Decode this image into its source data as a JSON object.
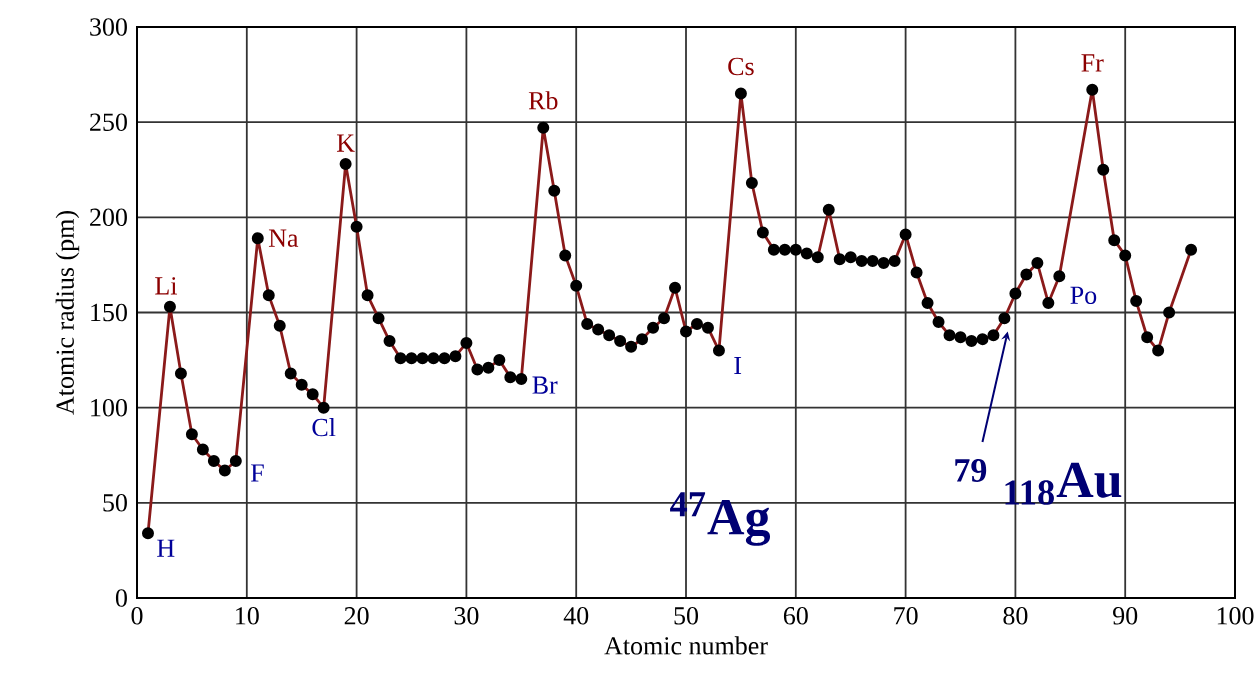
{
  "chart_data": {
    "type": "line",
    "xlabel": "Atomic number",
    "ylabel": "Atomic radius (pm)",
    "xlim": [
      0,
      100
    ],
    "ylim": [
      0,
      300
    ],
    "xticks": [
      0,
      10,
      20,
      30,
      40,
      50,
      60,
      70,
      80,
      90,
      100
    ],
    "yticks": [
      0,
      50,
      100,
      150,
      200,
      250,
      300
    ],
    "grid": true,
    "marker": "circle",
    "line_style": "solid",
    "series": [
      {
        "color": "#8b1a1a",
        "x": [
          1,
          3,
          4,
          5,
          6,
          7,
          8,
          9,
          11,
          12,
          13,
          14,
          15,
          16,
          17,
          19,
          20,
          21,
          22,
          23,
          24,
          25,
          26,
          27,
          28,
          29,
          30,
          31,
          32,
          33,
          34,
          35,
          37,
          38,
          39,
          40,
          41,
          42,
          43,
          44,
          45,
          46,
          47,
          48,
          49,
          50,
          51,
          52,
          53,
          55,
          56,
          57,
          58,
          59,
          60,
          61,
          62,
          63,
          64,
          65,
          66,
          67,
          68,
          69,
          70,
          71,
          72,
          73,
          74,
          75,
          76,
          77,
          78,
          79,
          80,
          81,
          82,
          83,
          84,
          87,
          88,
          89,
          90,
          91,
          92,
          93,
          94,
          96
        ],
        "values": [
          34,
          153,
          118,
          86,
          78,
          72,
          67,
          72,
          189,
          159,
          143,
          118,
          112,
          107,
          100,
          228,
          195,
          159,
          147,
          135,
          126,
          126,
          126,
          126,
          126,
          127,
          134,
          120,
          121,
          125,
          116,
          115,
          247,
          214,
          180,
          164,
          144,
          141,
          138,
          135,
          132,
          136,
          142,
          147,
          163,
          140,
          144,
          142,
          130,
          265,
          218,
          192,
          183,
          183,
          183,
          181,
          179,
          204,
          178,
          179,
          177,
          177,
          176,
          177,
          191,
          171,
          155,
          145,
          138,
          137,
          135,
          136,
          138,
          147,
          160,
          170,
          176,
          155,
          169,
          267,
          225,
          188,
          180,
          156,
          137,
          130,
          150,
          183
        ]
      }
    ],
    "annotations": [
      {
        "text": "H",
        "x": 1,
        "y": 34
      },
      {
        "text": "Li",
        "x": 3,
        "y": 153
      },
      {
        "text": "F",
        "x": 9,
        "y": 72
      },
      {
        "text": "Na",
        "x": 11,
        "y": 189
      },
      {
        "text": "Cl",
        "x": 17,
        "y": 100
      },
      {
        "text": "K",
        "x": 19,
        "y": 228
      },
      {
        "text": "Br",
        "x": 35,
        "y": 115
      },
      {
        "text": "Rb",
        "x": 37,
        "y": 247
      },
      {
        "text": "I",
        "x": 53,
        "y": 130
      },
      {
        "text": "Cs",
        "x": 55,
        "y": 265
      },
      {
        "text": "Po",
        "x": 84,
        "y": 169
      },
      {
        "text": "Fr",
        "x": 87,
        "y": 267
      },
      "$^{47}$Ag",
      "79",
      "$_{118}$Au"
    ]
  }
}
